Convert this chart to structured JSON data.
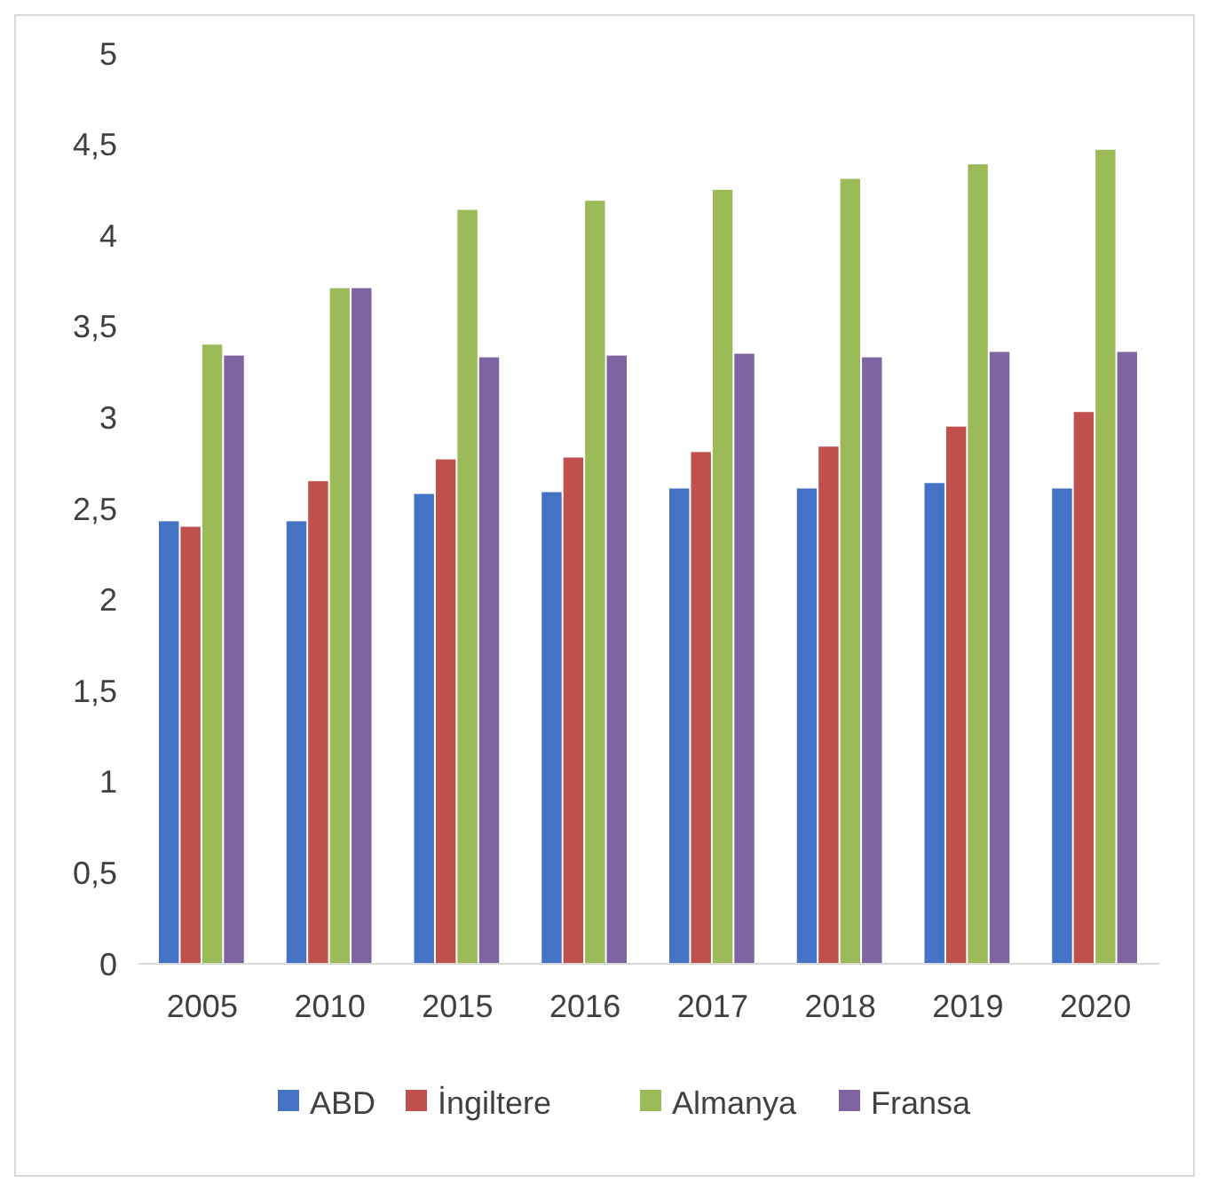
{
  "chart_data": {
    "type": "bar",
    "categories": [
      "2005",
      "2010",
      "2015",
      "2016",
      "2017",
      "2018",
      "2019",
      "2020"
    ],
    "series": [
      {
        "name": "ABD",
        "color": "#4472c4",
        "values": [
          2.43,
          2.43,
          2.58,
          2.59,
          2.61,
          2.61,
          2.64,
          2.61
        ]
      },
      {
        "name": "İngiltere",
        "color": "#c0504d",
        "values": [
          2.4,
          2.65,
          2.77,
          2.78,
          2.81,
          2.84,
          2.95,
          3.03
        ]
      },
      {
        "name": "Almanya",
        "color": "#9bbb59",
        "values": [
          3.4,
          3.71,
          4.14,
          4.19,
          4.25,
          4.31,
          4.39,
          4.47
        ]
      },
      {
        "name": "Fransa",
        "color": "#8064a2",
        "values": [
          3.34,
          3.71,
          3.33,
          3.34,
          3.35,
          3.33,
          3.36,
          3.36
        ]
      }
    ],
    "ylim": [
      0,
      5
    ],
    "yticks": [
      0,
      {
        "value": 0.5,
        "label": "0,5"
      },
      1,
      {
        "value": 1.5,
        "label": "1,5"
      },
      2,
      {
        "value": 2.5,
        "label": "2,5"
      },
      3,
      {
        "value": 3.5,
        "label": "3,5"
      },
      4,
      {
        "value": 4.5,
        "label": "4,5"
      },
      5
    ],
    "grid": false,
    "legend": "bottom"
  }
}
